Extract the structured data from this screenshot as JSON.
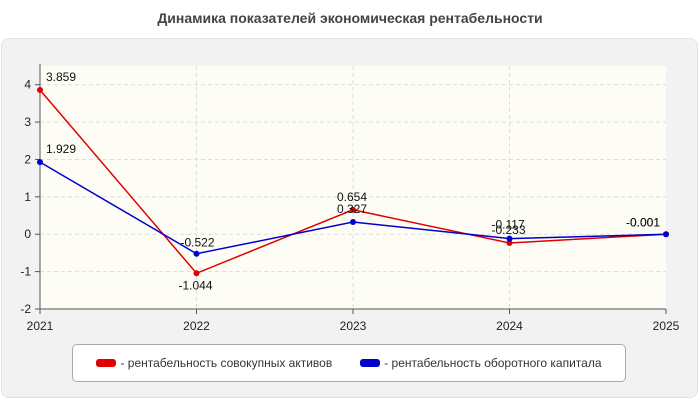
{
  "chart_data": {
    "type": "line",
    "title": "Динамика показателей экономическая рентабельности",
    "xlabel": "",
    "ylabel": "",
    "categories": [
      "2021",
      "2022",
      "2023",
      "2024",
      "2025"
    ],
    "ylim": [
      -2,
      4.5
    ],
    "yticks": [
      "-2",
      "-1",
      "0",
      "1",
      "2",
      "3",
      "4"
    ],
    "grid": true,
    "legend_position": "bottom",
    "series": [
      {
        "name": "- рентабельность совокупных активов",
        "color": "#e00000",
        "values": [
          3.859,
          -1.044,
          0.654,
          -0.233,
          -0.001
        ],
        "labels": [
          "3.859",
          "-1.044",
          "0.654",
          "-0.233",
          "-0.001"
        ]
      },
      {
        "name": "- рентабельность оборотного капитала",
        "color": "#0000cc",
        "values": [
          1.929,
          -0.522,
          0.327,
          -0.117,
          -0.001
        ],
        "labels": [
          "1.929",
          "-0.522",
          "0.327",
          "-0.117",
          "-0.001"
        ]
      }
    ]
  }
}
